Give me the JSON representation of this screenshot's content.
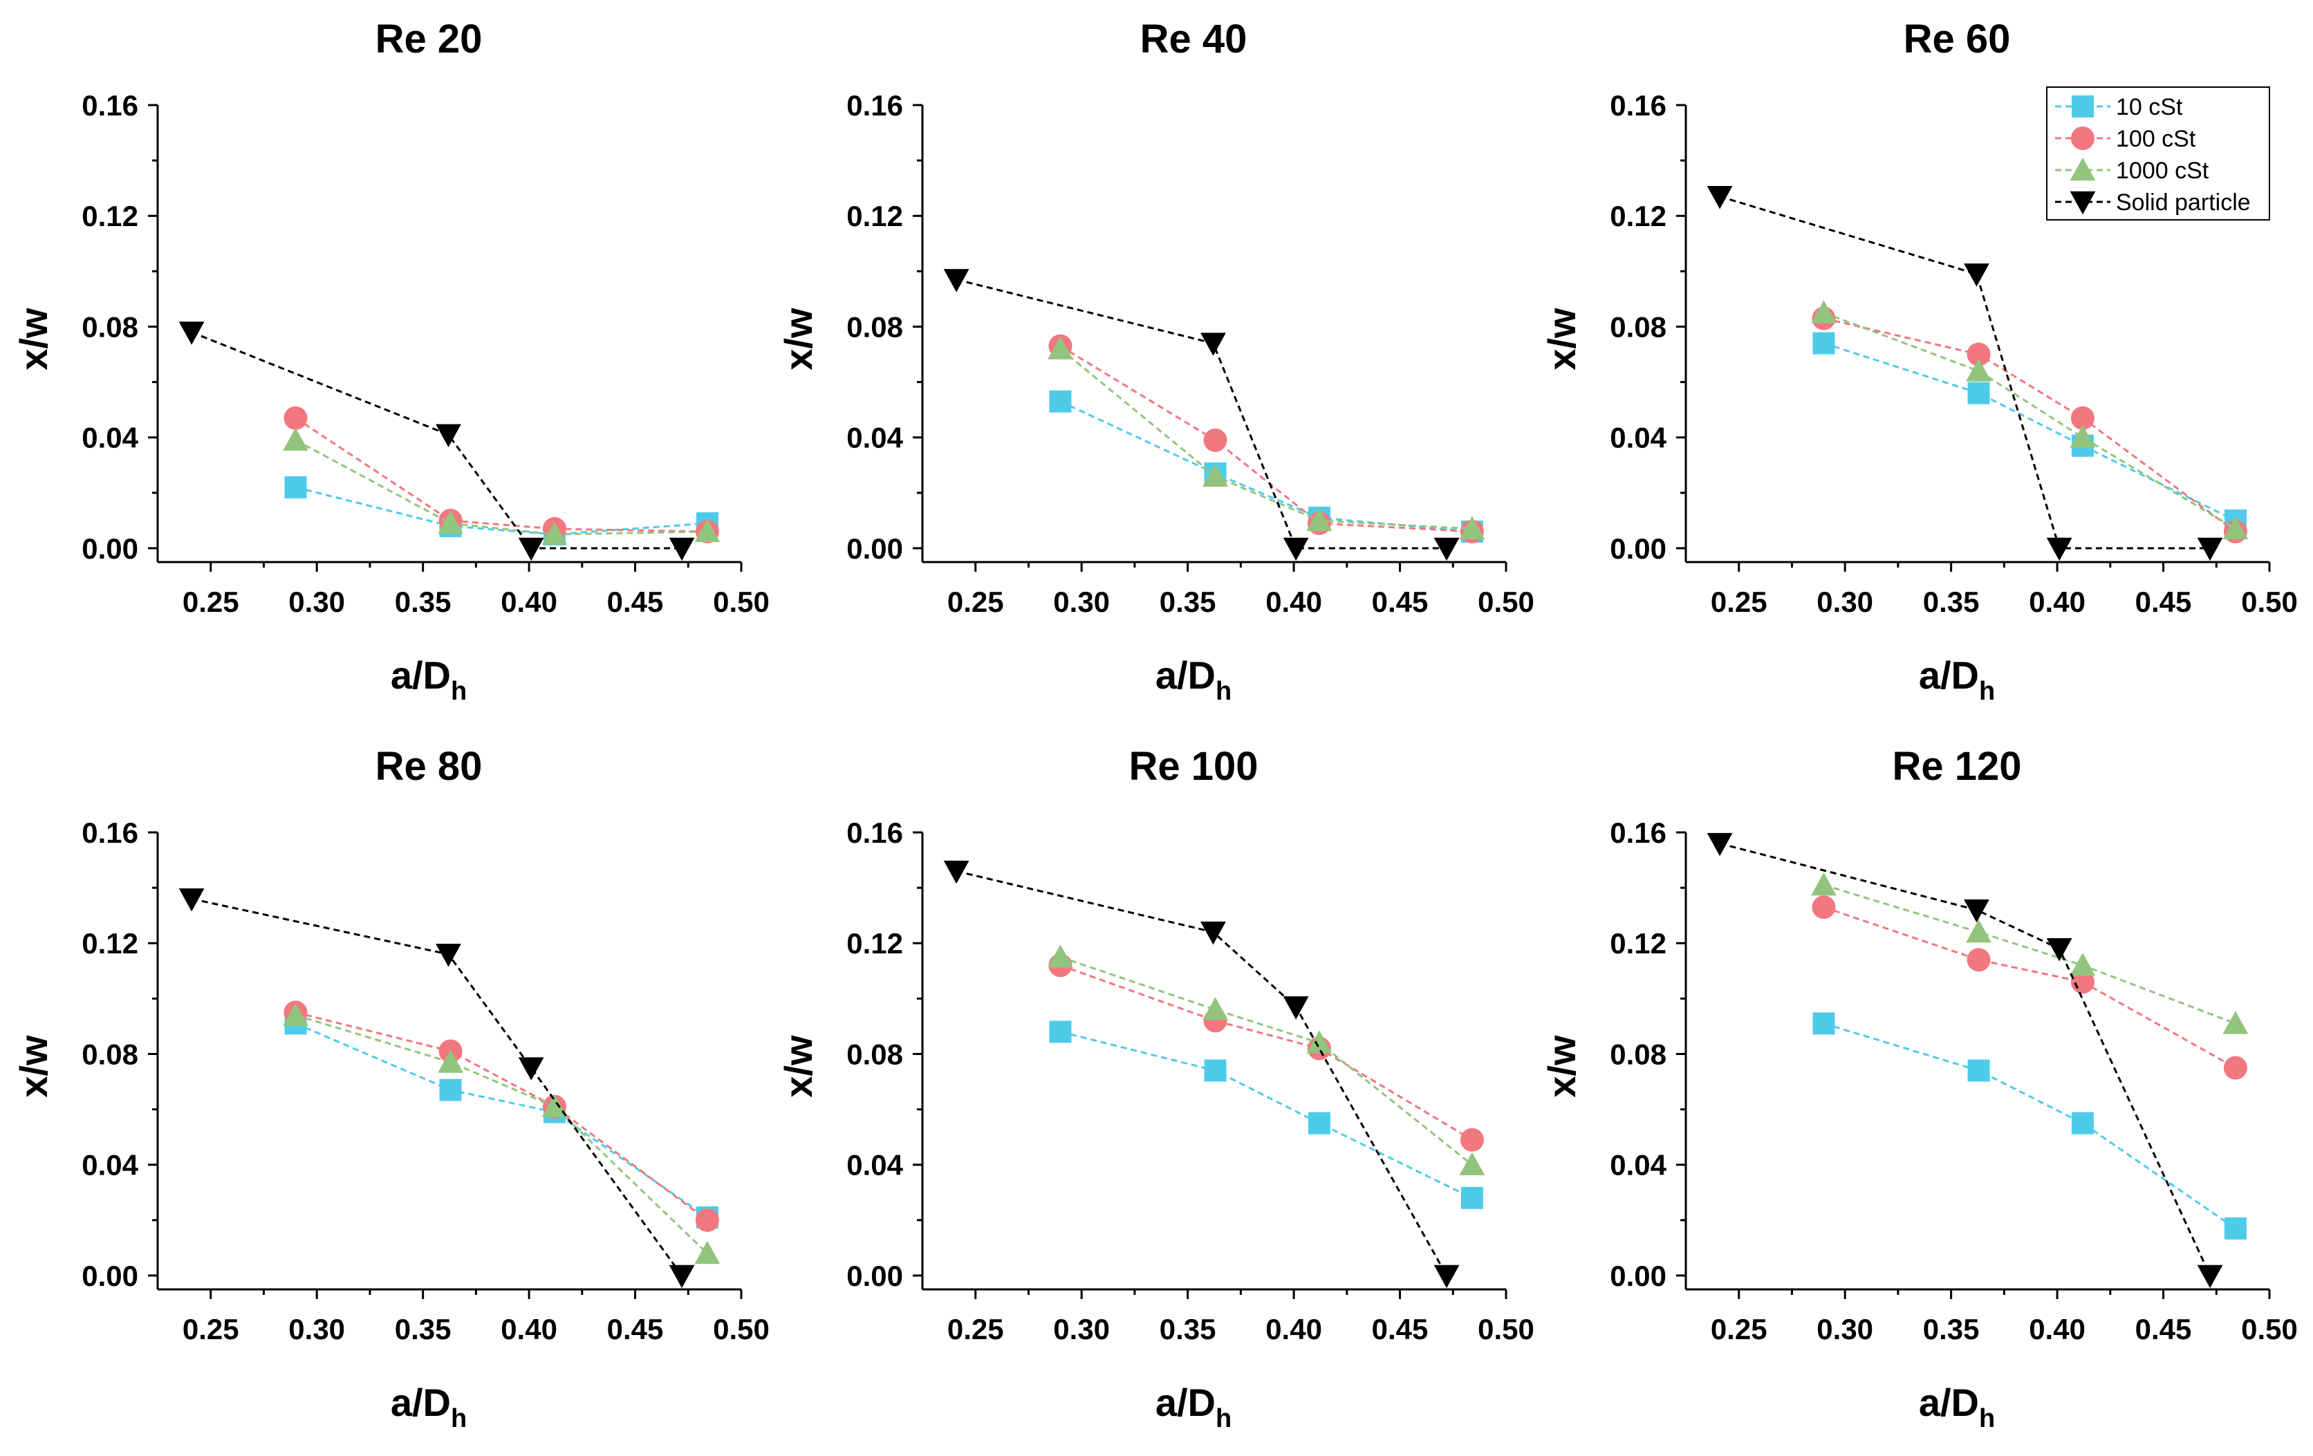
{
  "colors": {
    "10 cSt": "#4fcbea",
    "100 cSt": "#f2777f",
    "1000 cSt": "#93c47d",
    "Solid particle": "#000000"
  },
  "legend": {
    "entries": [
      "10 cSt",
      "100 cSt",
      "1000 cSt",
      "Solid particle"
    ],
    "placement": "top-right of Re 60 panel"
  },
  "chart_data": [
    {
      "type": "line",
      "title": "Re 20",
      "xlabel": "a/D",
      "xlabel_sub": "h",
      "ylabel": "x/w",
      "xlim": [
        0.225,
        0.5
      ],
      "ylim": [
        -0.005,
        0.16
      ],
      "xticks": [
        "0.25",
        "0.30",
        "0.35",
        "0.40",
        "0.45",
        "0.50"
      ],
      "yticks": [
        "0.00",
        "0.04",
        "0.08",
        "0.12",
        "0.16"
      ],
      "series": [
        {
          "name": "10 cSt",
          "marker": "square",
          "x": [
            0.29,
            0.363,
            0.412,
            0.484
          ],
          "y": [
            0.022,
            0.008,
            0.005,
            0.009
          ]
        },
        {
          "name": "100 cSt",
          "marker": "circle",
          "x": [
            0.29,
            0.363,
            0.412,
            0.484
          ],
          "y": [
            0.047,
            0.01,
            0.007,
            0.006
          ]
        },
        {
          "name": "1000 cSt",
          "marker": "triangle-up",
          "x": [
            0.29,
            0.363,
            0.412,
            0.484
          ],
          "y": [
            0.039,
            0.009,
            0.005,
            0.006
          ]
        },
        {
          "name": "Solid particle",
          "marker": "triangle-down",
          "x": [
            0.241,
            0.362,
            0.401,
            0.472
          ],
          "y": [
            0.078,
            0.041,
            0.0,
            0.0
          ]
        }
      ]
    },
    {
      "type": "line",
      "title": "Re 40",
      "xlabel": "a/D",
      "xlabel_sub": "h",
      "ylabel": "x/w",
      "xlim": [
        0.225,
        0.5
      ],
      "ylim": [
        -0.005,
        0.16
      ],
      "xticks": [
        "0.25",
        "0.30",
        "0.35",
        "0.40",
        "0.45",
        "0.50"
      ],
      "yticks": [
        "0.00",
        "0.04",
        "0.08",
        "0.12",
        "0.16"
      ],
      "series": [
        {
          "name": "10 cSt",
          "marker": "square",
          "x": [
            0.29,
            0.363,
            0.412,
            0.484
          ],
          "y": [
            0.053,
            0.027,
            0.011,
            0.006
          ]
        },
        {
          "name": "100 cSt",
          "marker": "circle",
          "x": [
            0.29,
            0.363,
            0.412,
            0.484
          ],
          "y": [
            0.073,
            0.039,
            0.009,
            0.006
          ]
        },
        {
          "name": "1000 cSt",
          "marker": "triangle-up",
          "x": [
            0.29,
            0.363,
            0.412,
            0.484
          ],
          "y": [
            0.072,
            0.026,
            0.01,
            0.007
          ]
        },
        {
          "name": "Solid particle",
          "marker": "triangle-down",
          "x": [
            0.241,
            0.362,
            0.401,
            0.472
          ],
          "y": [
            0.097,
            0.074,
            0.0,
            0.0
          ]
        }
      ]
    },
    {
      "type": "line",
      "title": "Re 60",
      "xlabel": "a/D",
      "xlabel_sub": "h",
      "ylabel": "x/w",
      "xlim": [
        0.225,
        0.5
      ],
      "ylim": [
        -0.005,
        0.16
      ],
      "xticks": [
        "0.25",
        "0.30",
        "0.35",
        "0.40",
        "0.45",
        "0.50"
      ],
      "yticks": [
        "0.00",
        "0.04",
        "0.08",
        "0.12",
        "0.16"
      ],
      "series": [
        {
          "name": "10 cSt",
          "marker": "square",
          "x": [
            0.29,
            0.363,
            0.412,
            0.484
          ],
          "y": [
            0.074,
            0.056,
            0.037,
            0.01
          ]
        },
        {
          "name": "100 cSt",
          "marker": "circle",
          "x": [
            0.29,
            0.363,
            0.412,
            0.484
          ],
          "y": [
            0.083,
            0.07,
            0.047,
            0.006
          ]
        },
        {
          "name": "1000 cSt",
          "marker": "triangle-up",
          "x": [
            0.29,
            0.363,
            0.412,
            0.484
          ],
          "y": [
            0.085,
            0.064,
            0.04,
            0.007
          ]
        },
        {
          "name": "Solid particle",
          "marker": "triangle-down",
          "x": [
            0.241,
            0.362,
            0.401,
            0.472
          ],
          "y": [
            0.127,
            0.099,
            0.0,
            0.0
          ]
        }
      ]
    },
    {
      "type": "line",
      "title": "Re 80",
      "xlabel": "a/D",
      "xlabel_sub": "h",
      "ylabel": "x/w",
      "xlim": [
        0.225,
        0.5
      ],
      "ylim": [
        -0.005,
        0.16
      ],
      "xticks": [
        "0.25",
        "0.30",
        "0.35",
        "0.40",
        "0.45",
        "0.50"
      ],
      "yticks": [
        "0.00",
        "0.04",
        "0.08",
        "0.12",
        "0.16"
      ],
      "series": [
        {
          "name": "10 cSt",
          "marker": "square",
          "x": [
            0.29,
            0.363,
            0.412,
            0.484
          ],
          "y": [
            0.091,
            0.067,
            0.059,
            0.021
          ]
        },
        {
          "name": "100 cSt",
          "marker": "circle",
          "x": [
            0.29,
            0.363,
            0.412,
            0.484
          ],
          "y": [
            0.095,
            0.081,
            0.061,
            0.02
          ]
        },
        {
          "name": "1000 cSt",
          "marker": "triangle-up",
          "x": [
            0.29,
            0.363,
            0.412,
            0.484
          ],
          "y": [
            0.094,
            0.077,
            0.061,
            0.008
          ]
        },
        {
          "name": "Solid particle",
          "marker": "triangle-down",
          "x": [
            0.241,
            0.362,
            0.401,
            0.472
          ],
          "y": [
            0.136,
            0.116,
            0.075,
            0.0
          ]
        }
      ]
    },
    {
      "type": "line",
      "title": "Re 100",
      "xlabel": "a/D",
      "xlabel_sub": "h",
      "ylabel": "x/w",
      "xlim": [
        0.225,
        0.5
      ],
      "ylim": [
        -0.005,
        0.16
      ],
      "xticks": [
        "0.25",
        "0.30",
        "0.35",
        "0.40",
        "0.45",
        "0.50"
      ],
      "yticks": [
        "0.00",
        "0.04",
        "0.08",
        "0.12",
        "0.16"
      ],
      "series": [
        {
          "name": "10 cSt",
          "marker": "square",
          "x": [
            0.29,
            0.363,
            0.412,
            0.484
          ],
          "y": [
            0.088,
            0.074,
            0.055,
            0.028
          ]
        },
        {
          "name": "100 cSt",
          "marker": "circle",
          "x": [
            0.29,
            0.363,
            0.412,
            0.484
          ],
          "y": [
            0.112,
            0.092,
            0.082,
            0.049
          ]
        },
        {
          "name": "1000 cSt",
          "marker": "triangle-up",
          "x": [
            0.29,
            0.363,
            0.412,
            0.484
          ],
          "y": [
            0.115,
            0.096,
            0.084,
            0.04
          ]
        },
        {
          "name": "Solid particle",
          "marker": "triangle-down",
          "x": [
            0.241,
            0.362,
            0.401,
            0.472
          ],
          "y": [
            0.146,
            0.124,
            0.097,
            0.0
          ]
        }
      ]
    },
    {
      "type": "line",
      "title": "Re 120",
      "xlabel": "a/D",
      "xlabel_sub": "h",
      "ylabel": "x/w",
      "xlim": [
        0.225,
        0.5
      ],
      "ylim": [
        -0.005,
        0.16
      ],
      "xticks": [
        "0.25",
        "0.30",
        "0.35",
        "0.40",
        "0.45",
        "0.50"
      ],
      "yticks": [
        "0.00",
        "0.04",
        "0.08",
        "0.12",
        "0.16"
      ],
      "series": [
        {
          "name": "10 cSt",
          "marker": "square",
          "x": [
            0.29,
            0.363,
            0.412,
            0.484
          ],
          "y": [
            0.091,
            0.074,
            0.055,
            0.017
          ]
        },
        {
          "name": "100 cSt",
          "marker": "circle",
          "x": [
            0.29,
            0.363,
            0.412,
            0.484
          ],
          "y": [
            0.133,
            0.114,
            0.106,
            0.075
          ]
        },
        {
          "name": "1000 cSt",
          "marker": "triangle-up",
          "x": [
            0.29,
            0.363,
            0.412,
            0.484
          ],
          "y": [
            0.141,
            0.124,
            0.112,
            0.091
          ]
        },
        {
          "name": "Solid particle",
          "marker": "triangle-down",
          "x": [
            0.241,
            0.362,
            0.401,
            0.472
          ],
          "y": [
            0.156,
            0.132,
            0.118,
            0.0
          ]
        }
      ]
    }
  ]
}
